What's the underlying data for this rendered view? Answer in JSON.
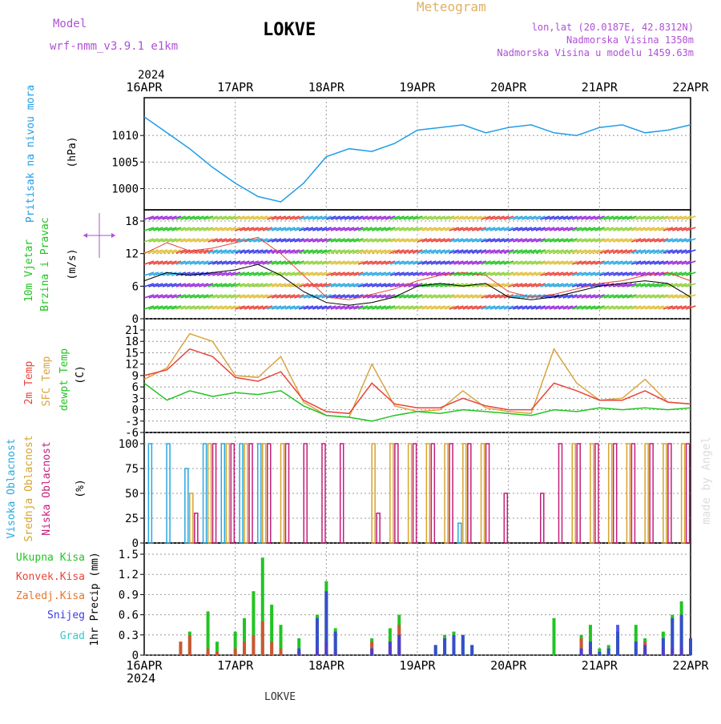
{
  "header": {
    "model_label": "Model",
    "model_name": "wrf-nmm_v3.9.1  e1km",
    "station": "LOKVE",
    "product": "Meteogram",
    "coords": "lon,lat (20.0187E, 42.8312N)",
    "elevation": "Nadmorska Visina 1350m",
    "model_elevation": "Nadmorska Visina u modelu 1459.63m",
    "year_top": "2024",
    "year_bottom": "2024",
    "footer_station": "LOKVE",
    "credit": "made by Angel"
  },
  "time_axis": {
    "labels": [
      "16APR",
      "17APR",
      "18APR",
      "19APR",
      "20APR",
      "21APR",
      "22APR"
    ],
    "start_day": 16,
    "end_day": 22
  },
  "colors": {
    "pressure": "#1f9ee8",
    "temp2m": "#e8443a",
    "sfc": "#d9a441",
    "dewpt": "#22c422",
    "high_cloud": "#29a8e0",
    "mid_cloud": "#d6a32e",
    "low_cloud": "#c41e7a",
    "total_precip": "#22c422",
    "conv_precip": "#e8443a",
    "frozen_precip": "#e8742a",
    "snow": "#3a3ae8",
    "hail": "#3ac8c8",
    "model_label": "#b04fd8",
    "meteogram": "#e0b060"
  },
  "panels": {
    "pressure": {
      "label1": "Pritisak na nivou mora",
      "unit": "(hPa)",
      "ticks": [
        1000,
        1005,
        1010
      ]
    },
    "wind": {
      "label1": "10m Vjetar",
      "label2": "Brzina i Pravac",
      "unit": "(m/s)",
      "ticks": [
        0,
        6,
        12,
        18
      ]
    },
    "temperature": {
      "label1": "2m Temp",
      "label2": "SFC Temp",
      "label3": "dewpt Temp",
      "unit": "(C)",
      "ticks": [
        -6,
        -3,
        0,
        3,
        6,
        9,
        12,
        15,
        18,
        21
      ]
    },
    "cloud": {
      "label1": "Visoka Oblacnost",
      "label2": "Srednja Oblacnost",
      "label3": "Niska Oblacnost",
      "unit": "(%)",
      "ticks": [
        0,
        25,
        50,
        75,
        100
      ]
    },
    "precip": {
      "legend": [
        "Ukupna Kisa",
        "Konvek.Kisa",
        "Zaledj.Kisa",
        "Snijeg",
        "Grad"
      ],
      "unit": "1hr Precip (mm)",
      "ticks": [
        "0",
        "0.3",
        "0.6",
        "0.9",
        "1.2",
        "1.5"
      ]
    }
  },
  "chart_data": [
    {
      "type": "line",
      "name": "pressure",
      "x": [
        16.0,
        16.25,
        16.5,
        16.75,
        17.0,
        17.25,
        17.5,
        17.75,
        18.0,
        18.25,
        18.5,
        18.75,
        19.0,
        19.25,
        19.5,
        19.75,
        20.0,
        20.25,
        20.5,
        20.75,
        21.0,
        21.25,
        21.5,
        21.75,
        22.0
      ],
      "series": [
        {
          "values": [
            1013.5,
            1010.5,
            1007.5,
            1004.0,
            1001.0,
            998.5,
            997.5,
            1001.0,
            1006.0,
            1007.5,
            1007.0,
            1008.5,
            1011.0,
            1011.5,
            1012.0,
            1010.5,
            1011.5,
            1012.0,
            1010.5,
            1010.0,
            1011.5,
            1012.0,
            1010.5,
            1011.0,
            1012.0
          ]
        }
      ],
      "ylim": [
        996,
        1015
      ]
    },
    {
      "type": "line",
      "name": "wind",
      "x": [
        16.0,
        16.25,
        16.5,
        16.75,
        17.0,
        17.25,
        17.5,
        17.75,
        18.0,
        18.25,
        18.5,
        18.75,
        19.0,
        19.25,
        19.5,
        19.75,
        20.0,
        20.25,
        20.5,
        20.75,
        21.0,
        21.25,
        21.5,
        21.75,
        22.0
      ],
      "series": [
        {
          "values": [
            7.0,
            8.5,
            8.0,
            8.5,
            9.0,
            10.0,
            8.0,
            5.0,
            3.0,
            2.5,
            3.0,
            4.0,
            6.0,
            6.5,
            6.0,
            6.5,
            4.0,
            3.5,
            4.0,
            5.0,
            6.0,
            6.5,
            7.0,
            6.5,
            4.0
          ]
        },
        {
          "values": [
            12.0,
            14.0,
            12.5,
            13.0,
            14.0,
            15.0,
            12.0,
            8.0,
            4.0,
            3.5,
            4.5,
            5.5,
            7.0,
            8.0,
            8.5,
            8.0,
            5.0,
            4.0,
            4.5,
            5.5,
            6.5,
            7.0,
            8.0,
            8.5,
            7.0
          ]
        }
      ],
      "ylim": [
        0,
        18
      ]
    },
    {
      "type": "line",
      "name": "temperature",
      "x": [
        16.0,
        16.25,
        16.5,
        16.75,
        17.0,
        17.25,
        17.5,
        17.75,
        18.0,
        18.25,
        18.5,
        18.75,
        19.0,
        19.25,
        19.5,
        19.75,
        20.0,
        20.25,
        20.5,
        20.75,
        21.0,
        21.25,
        21.5,
        21.75,
        22.0
      ],
      "series": [
        {
          "values": [
            8.0,
            11.0,
            20.0,
            18.0,
            9.0,
            8.5,
            14.0,
            2.0,
            -1.5,
            -2.0,
            12.0,
            1.0,
            -0.5,
            0.0,
            5.0,
            0.5,
            -0.5,
            -1.0,
            16.0,
            7.0,
            2.5,
            3.0,
            8.0,
            2.0,
            1.5
          ]
        },
        {
          "values": [
            9.0,
            10.5,
            16.0,
            14.0,
            8.5,
            7.5,
            10.0,
            2.5,
            -0.5,
            -1.0,
            7.0,
            1.5,
            0.5,
            0.5,
            3.0,
            1.0,
            0.0,
            0.0,
            7.0,
            5.0,
            2.5,
            2.5,
            5.0,
            2.0,
            1.5
          ]
        },
        {
          "values": [
            7.0,
            2.5,
            5.0,
            3.5,
            4.5,
            4.0,
            5.0,
            1.0,
            -1.5,
            -2.0,
            -3.0,
            -1.5,
            -0.5,
            -1.0,
            0.0,
            -0.5,
            -1.0,
            -1.5,
            0.0,
            -0.5,
            0.5,
            0.0,
            0.5,
            0.0,
            0.5
          ]
        }
      ],
      "ylim": [
        -6,
        21
      ]
    },
    {
      "type": "bar",
      "name": "cloud",
      "x": [
        16.1,
        16.3,
        16.5,
        16.7,
        16.9,
        17.1,
        17.3,
        17.5,
        17.7,
        17.9,
        18.1,
        18.3,
        18.5,
        18.7,
        18.9,
        19.1,
        19.3,
        19.5,
        19.7,
        19.9,
        20.1,
        20.3,
        20.5,
        20.7,
        20.9,
        21.1,
        21.3,
        21.5,
        21.7,
        21.9
      ],
      "series": [
        {
          "values": [
            100,
            100,
            75,
            100,
            100,
            100,
            100,
            0,
            0,
            0,
            0,
            0,
            0,
            0,
            0,
            0,
            0,
            20,
            0,
            0,
            0,
            0,
            0,
            0,
            0,
            0,
            0,
            0,
            0,
            0
          ]
        },
        {
          "values": [
            0,
            0,
            50,
            100,
            100,
            100,
            100,
            100,
            0,
            0,
            0,
            0,
            100,
            100,
            100,
            100,
            100,
            100,
            100,
            0,
            0,
            0,
            0,
            100,
            100,
            100,
            100,
            100,
            100,
            100
          ]
        },
        {
          "values": [
            0,
            0,
            30,
            100,
            100,
            100,
            100,
            100,
            100,
            100,
            100,
            0,
            30,
            100,
            100,
            100,
            100,
            100,
            100,
            50,
            0,
            50,
            100,
            100,
            100,
            100,
            100,
            100,
            100,
            100
          ]
        }
      ],
      "ylim": [
        0,
        100
      ]
    },
    {
      "type": "bar",
      "name": "precip",
      "x": [
        16.4,
        16.5,
        16.7,
        16.8,
        17.0,
        17.1,
        17.2,
        17.3,
        17.4,
        17.5,
        17.7,
        17.9,
        18.0,
        18.1,
        18.5,
        18.7,
        18.8,
        19.2,
        19.3,
        19.4,
        19.5,
        19.6,
        20.5,
        20.8,
        20.9,
        21.0,
        21.1,
        21.2,
        21.4,
        21.5,
        21.7,
        21.8,
        21.9,
        22.0
      ],
      "series": [
        {
          "values": [
            0.2,
            0.35,
            0.65,
            0.2,
            0.35,
            0.55,
            0.95,
            1.45,
            0.75,
            0.45,
            0.25,
            0.6,
            1.1,
            0.4,
            0.25,
            0.4,
            0.6,
            0.15,
            0.3,
            0.35,
            0.3,
            0.15,
            0.55,
            0.3,
            0.45,
            0.1,
            0.15,
            0.35,
            0.45,
            0.25,
            0.35,
            0.6,
            0.8,
            0.25
          ]
        },
        {
          "values": [
            0.2,
            0.3,
            0.1,
            0.05,
            0.1,
            0.2,
            0.3,
            0.5,
            0.2,
            0.1,
            0.05,
            0.1,
            0.2,
            0.05,
            0.2,
            0.2,
            0.45,
            0.0,
            0.0,
            0.0,
            0.0,
            0.0,
            0.0,
            0.25,
            0.1,
            0.0,
            0.0,
            0.0,
            0.0,
            0.2,
            0.1,
            0.1,
            0.1,
            0.0
          ]
        },
        {
          "values": [
            0.0,
            0.0,
            0.0,
            0.0,
            0.0,
            0.0,
            0.0,
            0.0,
            0.0,
            0.0,
            0.0,
            0.0,
            0.0,
            0.0,
            0.0,
            0.0,
            0.0,
            0.0,
            0.0,
            0.0,
            0.0,
            0.0,
            0.0,
            0.0,
            0.0,
            0.0,
            0.0,
            0.0,
            0.0,
            0.0,
            0.0,
            0.0,
            0.0,
            0.0
          ]
        },
        {
          "values": [
            0.0,
            0.0,
            0.0,
            0.0,
            0.0,
            0.0,
            0.0,
            0.0,
            0.0,
            0.0,
            0.1,
            0.55,
            0.95,
            0.35,
            0.1,
            0.2,
            0.3,
            0.15,
            0.25,
            0.3,
            0.3,
            0.15,
            0.0,
            0.1,
            0.2,
            0.05,
            0.1,
            0.45,
            0.2,
            0.15,
            0.25,
            0.55,
            0.6,
            0.25
          ]
        },
        {
          "values": [
            0.0,
            0.0,
            0.0,
            0.0,
            0.0,
            0.0,
            0.0,
            0.0,
            0.0,
            0.0,
            0.0,
            0.0,
            0.0,
            0.0,
            0.0,
            0.0,
            0.0,
            0.0,
            0.0,
            0.0,
            0.0,
            0.0,
            0.0,
            0.0,
            0.0,
            0.0,
            0.0,
            0.0,
            0.0,
            0.0,
            0.0,
            0.0,
            0.0,
            0.0
          ]
        }
      ],
      "ylim": [
        0,
        1.5
      ]
    }
  ]
}
